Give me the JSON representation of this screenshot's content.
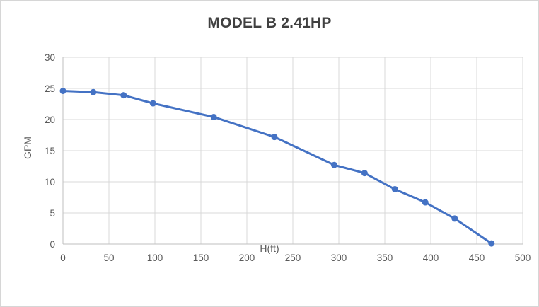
{
  "chart_data": {
    "type": "line",
    "title": "MODEL B 2.41HP",
    "xlabel": "H(ft)",
    "ylabel": "GPM",
    "x": [
      0,
      33,
      66,
      98,
      164,
      230,
      295,
      328,
      361,
      394,
      426,
      466
    ],
    "y": [
      24.6,
      24.4,
      23.9,
      22.6,
      20.4,
      17.2,
      12.7,
      11.4,
      8.8,
      6.7,
      4.1,
      0.1
    ],
    "xlim": [
      0,
      500
    ],
    "ylim": [
      0,
      30
    ],
    "x_ticks": [
      0,
      50,
      100,
      150,
      200,
      250,
      300,
      350,
      400,
      450,
      500
    ],
    "y_ticks": [
      0,
      5,
      10,
      15,
      20,
      25,
      30
    ],
    "grid": true,
    "legend": "none",
    "line_color": "#4472C4",
    "marker_color": "#4472C4",
    "grid_color": "#D9D9D9",
    "axis_line_color": "#BFBFBF",
    "tick_label_color": "#595959",
    "title_color": "#404040"
  }
}
